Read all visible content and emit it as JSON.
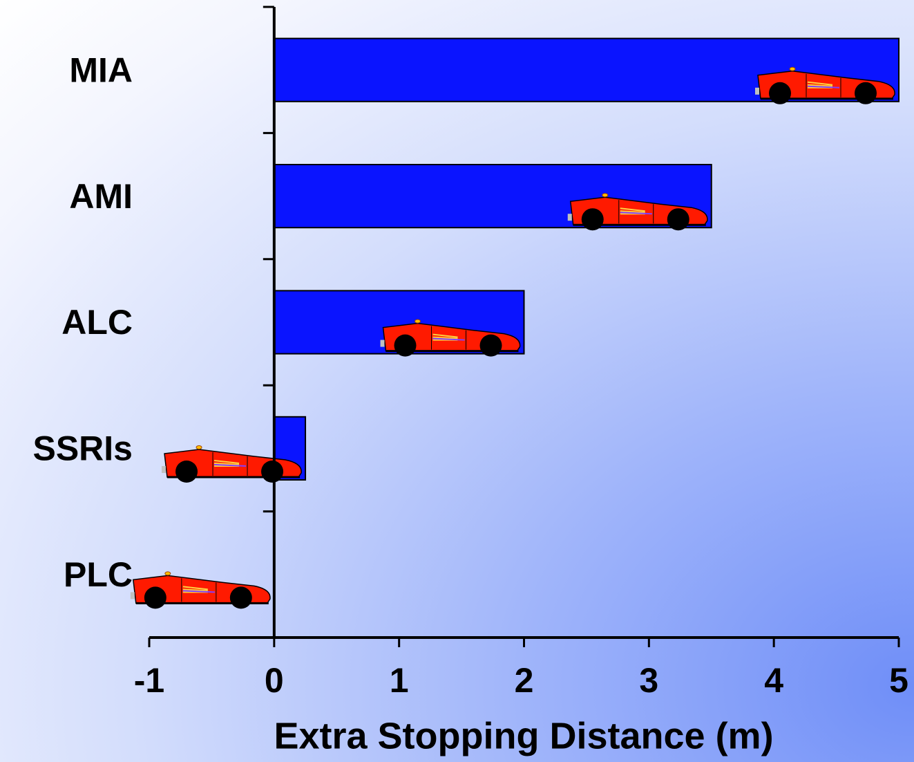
{
  "chart_data": {
    "type": "bar",
    "orientation": "horizontal",
    "categories": [
      "MIA",
      "AMI",
      "ALC",
      "SSRIs",
      "PLC"
    ],
    "values": [
      5,
      3.5,
      2,
      0.25,
      0
    ],
    "color": "#0a14ff",
    "xlim": [
      -1,
      5
    ],
    "xticks": [
      -1,
      0,
      1,
      2,
      3,
      4,
      5
    ],
    "x_label": "Extra Stopping Distance (m)",
    "grid": false
  }
}
